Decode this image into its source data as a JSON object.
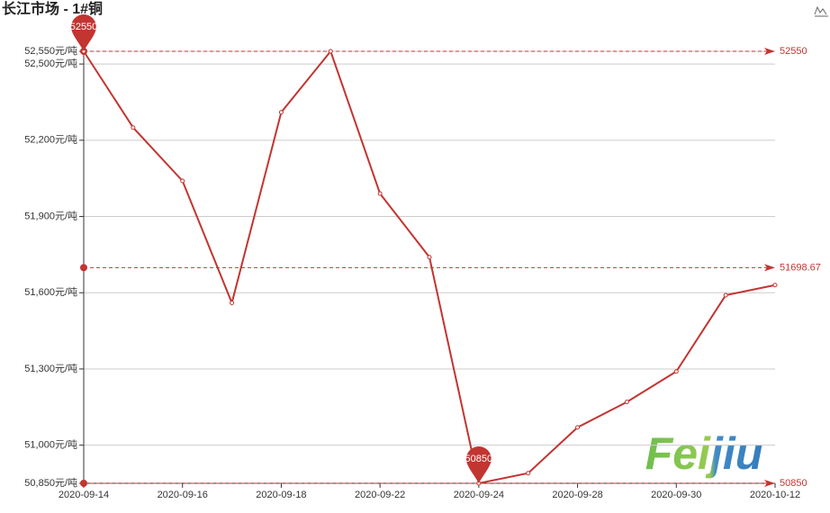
{
  "chart_data": {
    "type": "line",
    "title": "长江市场 - 1#铜",
    "categories": [
      "2020-09-14",
      null,
      "2020-09-16",
      null,
      "2020-09-18",
      null,
      "2020-09-22",
      null,
      "2020-09-24",
      null,
      "2020-09-28",
      null,
      "2020-09-30",
      null,
      "2020-10-12"
    ],
    "series": [
      {
        "color": "#c23531",
        "values": [
          52550,
          52250,
          52040,
          51560,
          52310,
          52550,
          51990,
          51740,
          50850,
          50890,
          51070,
          51170,
          51290,
          51590,
          51630
        ]
      }
    ],
    "ylim": [
      50850,
      52550
    ],
    "yticks": [
      {
        "value": 50850,
        "label": "50,850元/吨"
      },
      {
        "value": 51000,
        "label": "51,000元/吨"
      },
      {
        "value": 51300,
        "label": "51,300元/吨"
      },
      {
        "value": 51600,
        "label": "51,600元/吨"
      },
      {
        "value": 51900,
        "label": "51,900元/吨"
      },
      {
        "value": 52200,
        "label": "52,200元/吨"
      },
      {
        "value": 52500,
        "label": "52,500元/吨"
      },
      {
        "value": 52550,
        "label": "52,550元/吨"
      }
    ],
    "grid": true,
    "mark_lines": [
      52550,
      51698.67,
      50850
    ],
    "mark_points": [
      52550,
      50850
    ],
    "watermark": "Feijiu"
  }
}
